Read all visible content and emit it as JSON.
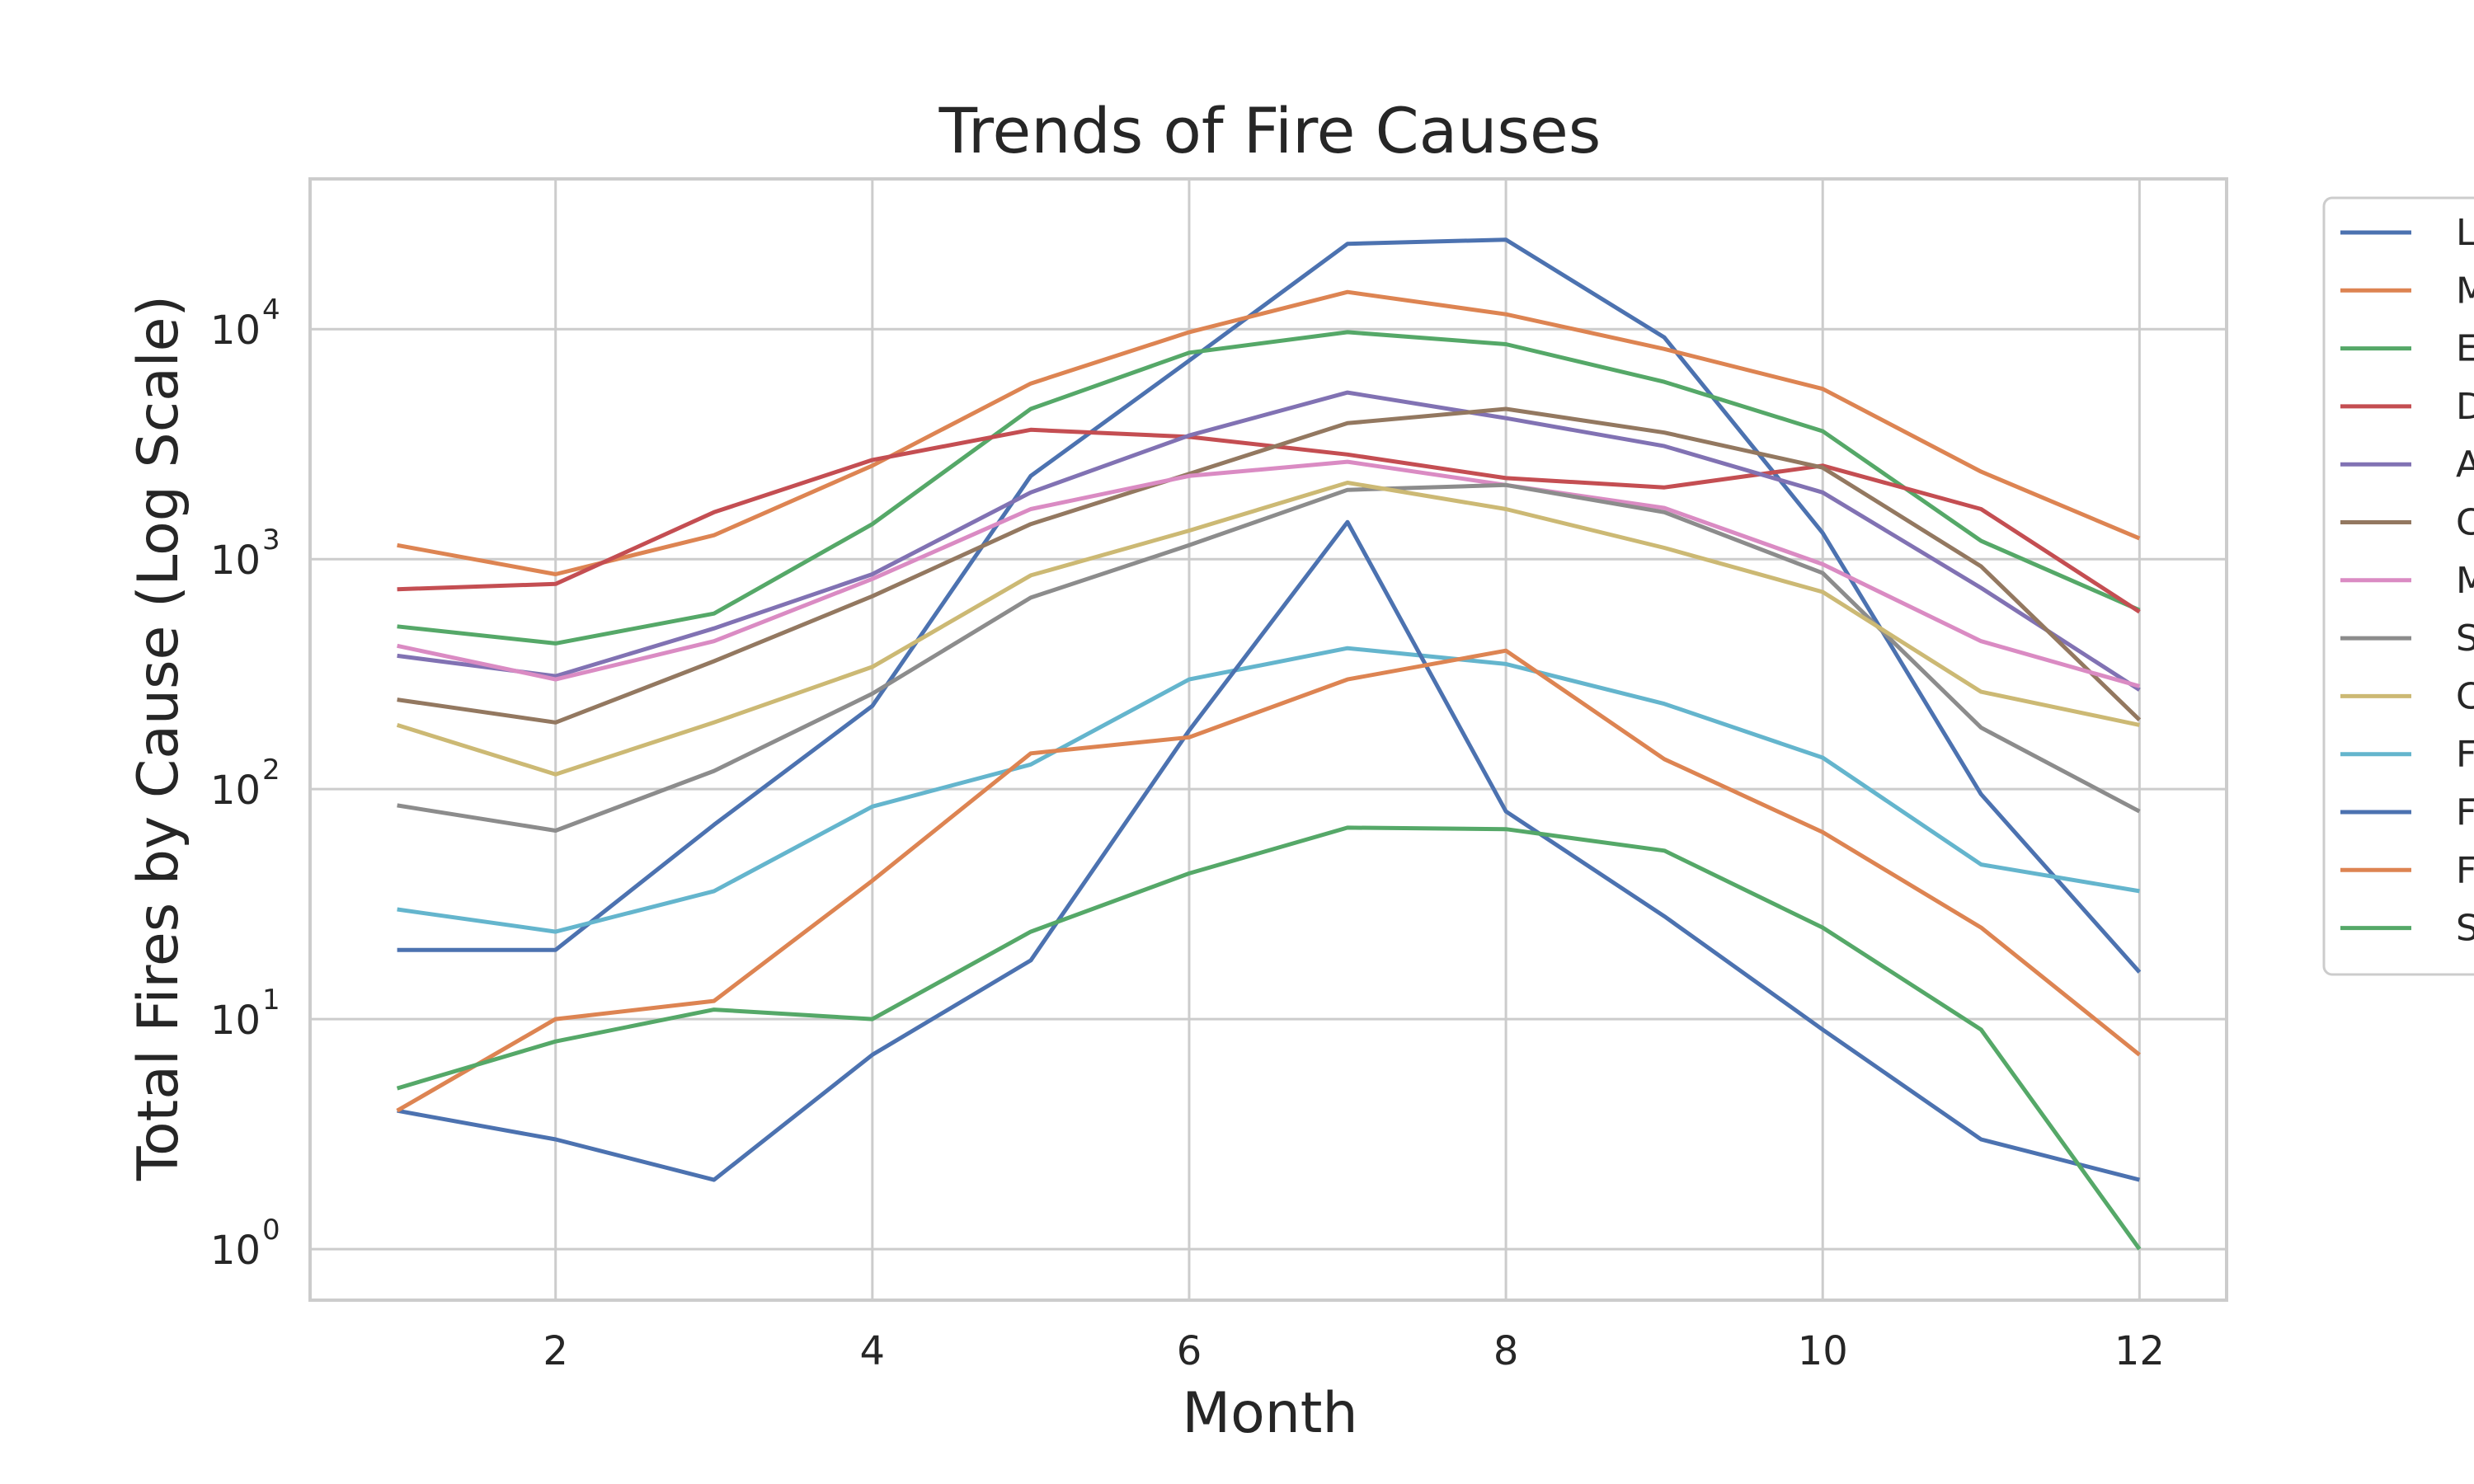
{
  "chart_data": {
    "type": "line",
    "title": "Trends of Fire Causes",
    "xlabel": "Month",
    "ylabel": "Total Fires by Cause (Log Scale)",
    "yscale": "log",
    "xlim": [
      0.45,
      12.55
    ],
    "ylim": [
      0.6,
      45000
    ],
    "xticks": [
      2,
      4,
      6,
      8,
      10,
      12
    ],
    "yticks": [
      {
        "value": 1,
        "base": "10",
        "exp": "0"
      },
      {
        "value": 10,
        "base": "10",
        "exp": "1"
      },
      {
        "value": 100,
        "base": "10",
        "exp": "2"
      },
      {
        "value": 1000,
        "base": "10",
        "exp": "3"
      },
      {
        "value": 10000,
        "base": "10",
        "exp": "4"
      }
    ],
    "grid": true,
    "legend_position": "outside top-right",
    "x": [
      1,
      2,
      3,
      4,
      5,
      6,
      7,
      8,
      9,
      10,
      11,
      12
    ],
    "series": [
      {
        "name": "L",
        "color": "#4c72b0",
        "values": [
          20,
          20,
          70,
          230,
          2300,
          7300,
          23500,
          24500,
          9200,
          1300,
          95,
          16
        ]
      },
      {
        "name": "M",
        "color": "#dd8452",
        "values": [
          1150,
          860,
          1270,
          2550,
          5800,
          9700,
          14500,
          11600,
          8200,
          5500,
          2400,
          1230
        ]
      },
      {
        "name": "E",
        "color": "#55a868",
        "values": [
          510,
          430,
          580,
          1420,
          4500,
          7900,
          9700,
          8600,
          5900,
          3600,
          1200,
          600
        ]
      },
      {
        "name": "D",
        "color": "#c44e52",
        "values": [
          740,
          780,
          1600,
          2700,
          3650,
          3400,
          2850,
          2250,
          2050,
          2550,
          1650,
          590
        ]
      },
      {
        "name": "A",
        "color": "#8172b3",
        "values": [
          380,
          310,
          500,
          860,
          1950,
          3450,
          5300,
          4100,
          3100,
          1950,
          750,
          270
        ]
      },
      {
        "name": "C",
        "color": "#937860",
        "values": [
          245,
          195,
          360,
          690,
          1420,
          2350,
          3900,
          4500,
          3550,
          2500,
          930,
          200
        ]
      },
      {
        "name": "M",
        "color": "#da8bc3",
        "values": [
          420,
          300,
          440,
          820,
          1650,
          2300,
          2650,
          2100,
          1670,
          950,
          440,
          280
        ]
      },
      {
        "name": "S",
        "color": "#8c8c8c",
        "values": [
          85,
          66,
          120,
          260,
          680,
          1150,
          2000,
          2100,
          1600,
          870,
          185,
          80
        ]
      },
      {
        "name": "C",
        "color": "#ccb974",
        "values": [
          190,
          116,
          195,
          340,
          850,
          1330,
          2150,
          1650,
          1120,
          720,
          265,
          190
        ]
      },
      {
        "name": "F",
        "color": "#64b5cd",
        "values": [
          30,
          24,
          36,
          84,
          128,
          300,
          410,
          350,
          235,
          137,
          47,
          36
        ]
      },
      {
        "name": "F",
        "color": "#4c72b0",
        "values": [
          4,
          3,
          2,
          7,
          18,
          180,
          1450,
          80,
          28,
          9,
          3,
          2
        ]
      },
      {
        "name": "F",
        "color": "#dd8452",
        "values": [
          4,
          10,
          12,
          40,
          143,
          168,
          300,
          400,
          135,
          65,
          25,
          7
        ]
      },
      {
        "name": "S",
        "color": "#55a868",
        "values": [
          5,
          8,
          11,
          10,
          24,
          43,
          68,
          67,
          54,
          25,
          9,
          1
        ]
      }
    ]
  }
}
